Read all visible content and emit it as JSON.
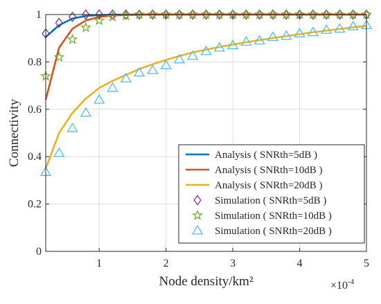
{
  "chart_data": {
    "type": "line",
    "xlabel": "Node density/km²",
    "ylabel": "Connectivity",
    "x_exponent_label": "×10",
    "x_exponent_power": "-4",
    "xlim": [
      0.2,
      5.0
    ],
    "ylim": [
      0,
      1
    ],
    "x_ticks": [
      1,
      2,
      3,
      4,
      5
    ],
    "x_tick_labels": [
      "1",
      "2",
      "3",
      "4",
      "5"
    ],
    "y_ticks": [
      0,
      0.2,
      0.4,
      0.6,
      0.8,
      1
    ],
    "y_tick_labels": [
      "0",
      "0.2",
      "0.4",
      "0.6",
      "0.8",
      "1"
    ],
    "grid": true,
    "legend_position": "bottom-right",
    "series": [
      {
        "name": "Analysis ( SNRth=5dB )",
        "kind": "line",
        "color": "#0072BD",
        "x": [
          0.2,
          0.4,
          0.6,
          0.8,
          1.0,
          1.2,
          1.4,
          1.6,
          1.8,
          2.0,
          2.5,
          3.0,
          3.5,
          4.0,
          4.5,
          5.0
        ],
        "y": [
          0.905,
          0.955,
          0.983,
          0.994,
          0.998,
          0.999,
          1.0,
          1.0,
          1.0,
          1.0,
          1.0,
          1.0,
          1.0,
          1.0,
          1.0,
          1.0
        ]
      },
      {
        "name": "Analysis ( SNRth=10dB )",
        "kind": "line",
        "color": "#D95319",
        "x": [
          0.2,
          0.4,
          0.6,
          0.8,
          1.0,
          1.2,
          1.4,
          1.6,
          1.8,
          2.0,
          2.5,
          3.0,
          3.5,
          4.0,
          4.5,
          5.0
        ],
        "y": [
          0.64,
          0.86,
          0.94,
          0.975,
          0.99,
          0.996,
          0.998,
          0.999,
          1.0,
          1.0,
          1.0,
          1.0,
          1.0,
          1.0,
          1.0,
          1.0
        ]
      },
      {
        "name": "Analysis ( SNRth=20dB )",
        "kind": "line",
        "color": "#EDB120",
        "x": [
          0.2,
          0.4,
          0.6,
          0.8,
          1.0,
          1.2,
          1.4,
          1.6,
          1.8,
          2.0,
          2.2,
          2.4,
          2.6,
          2.8,
          3.0,
          3.2,
          3.4,
          3.6,
          3.8,
          4.0,
          4.2,
          4.4,
          4.6,
          4.8,
          5.0
        ],
        "y": [
          0.35,
          0.5,
          0.585,
          0.645,
          0.69,
          0.72,
          0.745,
          0.77,
          0.79,
          0.808,
          0.825,
          0.84,
          0.852,
          0.863,
          0.873,
          0.883,
          0.892,
          0.901,
          0.909,
          0.917,
          0.925,
          0.932,
          0.939,
          0.946,
          0.952
        ]
      },
      {
        "name": "Simulation ( SNRth=5dB )",
        "kind": "marker",
        "marker": "diamond",
        "color": "#7E2F8E",
        "x": [
          0.2,
          0.4,
          0.6,
          0.8,
          1.0,
          1.2,
          1.4,
          1.6,
          1.8,
          2.0,
          2.2,
          2.4,
          2.6,
          2.8,
          3.0,
          3.2,
          3.4,
          3.6,
          3.8,
          4.0,
          4.2,
          4.4,
          4.6,
          4.8,
          5.0
        ],
        "y": [
          0.92,
          0.965,
          0.99,
          1.0,
          1.0,
          1.0,
          1.0,
          1.0,
          1.0,
          1.0,
          1.0,
          1.0,
          1.0,
          1.0,
          1.0,
          1.0,
          1.0,
          1.0,
          1.0,
          1.0,
          1.0,
          1.0,
          1.0,
          1.0,
          1.0
        ]
      },
      {
        "name": "Simulation ( SNRth=10dB )",
        "kind": "marker",
        "marker": "star",
        "color": "#77AC30",
        "x": [
          0.2,
          0.4,
          0.6,
          0.8,
          1.0,
          1.2,
          1.4,
          1.6,
          1.8,
          2.0,
          2.2,
          2.4,
          2.6,
          2.8,
          3.0,
          3.2,
          3.4,
          3.6,
          3.8,
          4.0,
          4.2,
          4.4,
          4.6,
          4.8,
          5.0
        ],
        "y": [
          0.74,
          0.82,
          0.895,
          0.945,
          0.975,
          0.99,
          0.995,
          1.0,
          1.0,
          1.0,
          1.0,
          1.0,
          1.0,
          1.0,
          1.0,
          1.0,
          1.0,
          1.0,
          1.0,
          1.0,
          1.0,
          1.0,
          1.0,
          1.0,
          1.0
        ]
      },
      {
        "name": "Simulation ( SNRth=20dB )",
        "kind": "marker",
        "marker": "triangle",
        "color": "#4DBEEE",
        "x": [
          0.2,
          0.4,
          0.6,
          0.8,
          1.0,
          1.2,
          1.4,
          1.6,
          1.8,
          2.0,
          2.2,
          2.4,
          2.6,
          2.8,
          3.0,
          3.2,
          3.4,
          3.6,
          3.8,
          4.0,
          4.2,
          4.4,
          4.6,
          4.8,
          5.0
        ],
        "y": [
          0.335,
          0.415,
          0.52,
          0.585,
          0.64,
          0.69,
          0.73,
          0.755,
          0.765,
          0.785,
          0.81,
          0.825,
          0.845,
          0.86,
          0.87,
          0.885,
          0.89,
          0.905,
          0.91,
          0.92,
          0.925,
          0.935,
          0.94,
          0.95,
          0.955
        ]
      }
    ]
  }
}
